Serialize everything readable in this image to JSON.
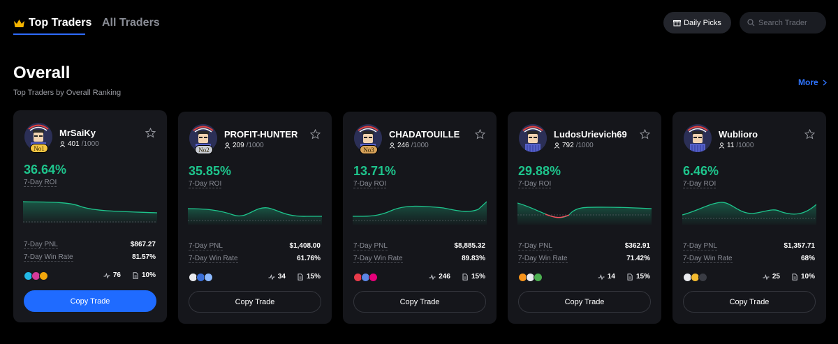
{
  "nav": {
    "tab_top": "Top Traders",
    "tab_all": "All Traders",
    "daily_picks": "Daily Picks",
    "search_placeholder": "Search Trader"
  },
  "section": {
    "title": "Overall",
    "subtitle": "Top Traders by Overall Ranking",
    "more": "More"
  },
  "labels": {
    "roi": "7-Day ROI",
    "pnl": "7-Day PNL",
    "win_rate": "7-Day Win Rate",
    "copy": "Copy Trade"
  },
  "colors": {
    "accent": "#1f6bff",
    "positive": "#1ec48c",
    "negative": "#ff4b5c",
    "card": "#15161b"
  },
  "traders": [
    {
      "name": "MrSaiKy",
      "rank": "No1",
      "followers": "401",
      "cap": "/1000",
      "roi": "36.64%",
      "pnl": "$867.27",
      "win_rate": "81.57%",
      "trades": "76",
      "share": "10%",
      "coins": [
        {
          "icon": "coin-cyan-icon",
          "color": "#22b8e6"
        },
        {
          "icon": "coin-x-icon",
          "color": "#d43a9a"
        },
        {
          "icon": "coin-orange-icon",
          "color": "#f2a60c"
        }
      ]
    },
    {
      "name": "PROFIT-HUNTER",
      "rank": "No2",
      "followers": "209",
      "cap": "/1000",
      "roi": "35.85%",
      "pnl": "$1,408.00",
      "win_rate": "61.76%",
      "trades": "34",
      "share": "15%",
      "coins": [
        {
          "icon": "coin-eth-icon",
          "color": "#e9eaee"
        },
        {
          "icon": "coin-ada-icon",
          "color": "#3b6fd8"
        },
        {
          "icon": "coin-stack-icon",
          "color": "#8cb9ff"
        }
      ]
    },
    {
      "name": "CHADATOUILLE",
      "rank": "No3",
      "followers": "246",
      "cap": "/1000",
      "roi": "13.71%",
      "pnl": "$8,885.32",
      "win_rate": "89.83%",
      "trades": "246",
      "share": "15%",
      "coins": [
        {
          "icon": "coin-red-icon",
          "color": "#e83b4a"
        },
        {
          "icon": "coin-blue-icon",
          "color": "#5b86e5"
        },
        {
          "icon": "coin-pink-icon",
          "color": "#e6007a"
        }
      ]
    },
    {
      "name": "LudosUrievich69",
      "rank": "",
      "followers": "792",
      "cap": "/1000",
      "roi": "29.88%",
      "pnl": "$362.91",
      "win_rate": "71.42%",
      "trades": "14",
      "share": "15%",
      "coins": [
        {
          "icon": "coin-btc-icon",
          "color": "#f7931a"
        },
        {
          "icon": "coin-eth-icon",
          "color": "#e9eaee"
        },
        {
          "icon": "coin-green-icon",
          "color": "#4caf50"
        }
      ]
    },
    {
      "name": "Wublioro",
      "rank": "",
      "followers": "11",
      "cap": "/1000",
      "roi": "6.46%",
      "pnl": "$1,357.71",
      "win_rate": "68%",
      "trades": "25",
      "share": "10%",
      "coins": [
        {
          "icon": "coin-eth-icon",
          "color": "#e9eaee"
        },
        {
          "icon": "coin-bnb-icon",
          "color": "#f3ba2f"
        },
        {
          "icon": "coin-x-icon",
          "color": "#3a3c44"
        }
      ]
    }
  ]
}
